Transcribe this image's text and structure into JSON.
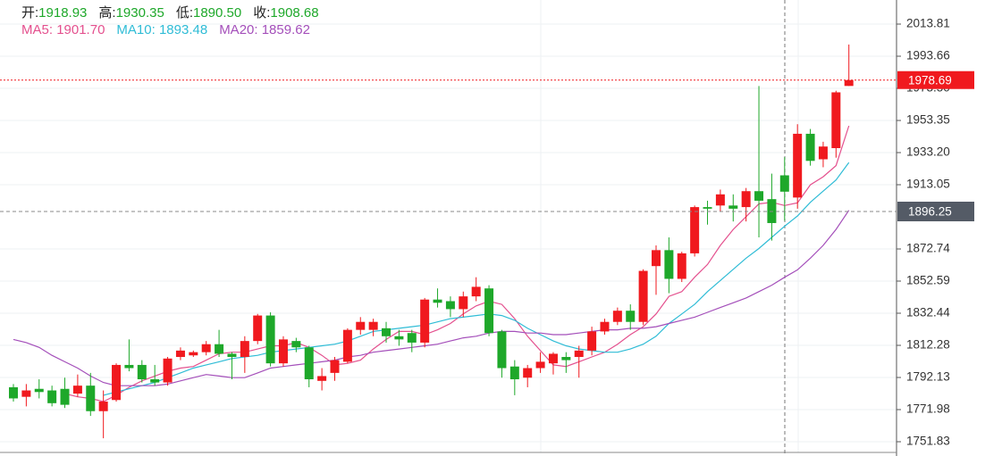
{
  "chart_data": {
    "type": "candlestick",
    "info": [
      {
        "label": "开:",
        "value": "1918.93"
      },
      {
        "label": "高:",
        "value": "1930.35"
      },
      {
        "label": "低:",
        "value": "1890.50"
      },
      {
        "label": "收:",
        "value": "1908.68"
      }
    ],
    "up_color": "#f0191e",
    "down_color": "#1ea82a",
    "ylim": [
      1742.87,
      2028.92
    ],
    "yticks": [
      2013.81,
      1993.66,
      {
        "value": 1973.5,
        "label": "1973.50"
      },
      1953.35,
      {
        "value": 1933.2,
        "label": "1933.20"
      },
      1913.05,
      1872.74,
      1852.59,
      1832.44,
      1812.28,
      1792.13,
      1771.98,
      1751.83
    ],
    "grid": true,
    "last_price": 1978.69,
    "crosshair_price": 1896.25,
    "candles": [
      [
        1786,
        1788,
        1777,
        1779
      ],
      [
        1780,
        1788,
        1774,
        1784
      ],
      [
        1785,
        1791,
        1779,
        1783
      ],
      [
        1784,
        1787,
        1774,
        1776
      ],
      [
        1785,
        1792,
        1773,
        1775
      ],
      [
        1782,
        1794,
        1780,
        1787
      ],
      [
        1787,
        1795,
        1768,
        1771
      ],
      [
        1771,
        1784,
        1754,
        1777
      ],
      [
        1778,
        1801,
        1777,
        1800
      ],
      [
        1800,
        1816,
        1796,
        1798
      ],
      [
        1800,
        1803,
        1789,
        1791
      ],
      [
        1791,
        1800,
        1787,
        1789
      ],
      [
        1789,
        1805,
        1787,
        1804
      ],
      [
        1805,
        1811,
        1803,
        1809
      ],
      [
        1806,
        1809,
        1805,
        1808
      ],
      [
        1808,
        1815,
        1806,
        1813
      ],
      [
        1813,
        1822,
        1805,
        1807
      ],
      [
        1807,
        1808,
        1791,
        1805
      ],
      [
        1805,
        1818,
        1795,
        1815
      ],
      [
        1815,
        1832,
        1813,
        1831
      ],
      [
        1831,
        1833,
        1799,
        1801
      ],
      [
        1801,
        1818,
        1799,
        1816
      ],
      [
        1815,
        1817,
        1808,
        1811
      ],
      [
        1811,
        1812,
        1786,
        1791
      ],
      [
        1790,
        1798,
        1784,
        1793
      ],
      [
        1795,
        1805,
        1790,
        1803
      ],
      [
        1802,
        1823,
        1801,
        1822
      ],
      [
        1822,
        1830,
        1819,
        1827
      ],
      [
        1822,
        1829,
        1818,
        1827
      ],
      [
        1823,
        1827,
        1814,
        1818
      ],
      [
        1818,
        1822,
        1812,
        1816
      ],
      [
        1820,
        1822,
        1808,
        1814
      ],
      [
        1814,
        1842,
        1811,
        1841
      ],
      [
        1841,
        1848,
        1836,
        1839
      ],
      [
        1840,
        1843,
        1830,
        1835
      ],
      [
        1835,
        1846,
        1830,
        1843
      ],
      [
        1843,
        1855,
        1840,
        1849
      ],
      [
        1848,
        1850,
        1818,
        1820
      ],
      [
        1821,
        1822,
        1792,
        1798
      ],
      [
        1799,
        1803,
        1781,
        1791
      ],
      [
        1792,
        1800,
        1786,
        1798
      ],
      [
        1798,
        1808,
        1795,
        1802
      ],
      [
        1801,
        1808,
        1794,
        1807
      ],
      [
        1805,
        1808,
        1795,
        1803
      ],
      [
        1805,
        1812,
        1792,
        1809
      ],
      [
        1809,
        1824,
        1806,
        1821
      ],
      [
        1821,
        1829,
        1819,
        1827
      ],
      [
        1827,
        1836,
        1825,
        1834
      ],
      [
        1834,
        1838,
        1822,
        1827
      ],
      [
        1827,
        1860,
        1825,
        1859
      ],
      [
        1862,
        1875,
        1844,
        1872
      ],
      [
        1872,
        1880,
        1845,
        1854
      ],
      [
        1854,
        1871,
        1852,
        1870
      ],
      [
        1870,
        1900,
        1868,
        1899
      ],
      [
        1899,
        1903,
        1888,
        1898
      ],
      [
        1900,
        1910,
        1896,
        1907
      ],
      [
        1900,
        1907,
        1890,
        1898
      ],
      [
        1899,
        1911,
        1890,
        1909
      ],
      [
        1909,
        1975,
        1880,
        1903
      ],
      [
        1904,
        1920,
        1878,
        1889
      ],
      [
        1918.93,
        1930.35,
        1890.5,
        1908.68
      ],
      [
        1905,
        1951,
        1898,
        1945
      ],
      [
        1945,
        1948,
        1925,
        1928
      ],
      [
        1929,
        1940,
        1924,
        1937
      ],
      [
        1936,
        1972,
        1930,
        1971
      ],
      [
        1975,
        2001,
        1975,
        1978.69
      ]
    ],
    "series": [
      {
        "name": "MA5",
        "color": "#e4508e",
        "current_label": "1901.70",
        "values": [
          null,
          null,
          null,
          null,
          1782,
          1780,
          1779,
          1777,
          1781,
          1786,
          1790,
          1793,
          1796,
          1798,
          1799,
          1803,
          1807,
          1808,
          1808,
          1810,
          1812,
          1812,
          1814,
          1811,
          1806,
          1800,
          1801,
          1803,
          1810,
          1816,
          1821,
          1821,
          1819,
          1822,
          1826,
          1832,
          1837,
          1840,
          1838,
          1829,
          1818,
          1809,
          1800,
          1799,
          1802,
          1805,
          1808,
          1813,
          1819,
          1824,
          1832,
          1843,
          1846,
          1855,
          1863,
          1875,
          1885,
          1893,
          1901,
          1902,
          1900,
          1901.7,
          1913,
          1918,
          1925,
          1950
        ]
      },
      {
        "name": "MA10",
        "color": "#2fbcd6",
        "current_label": "1893.48",
        "values": [
          null,
          null,
          null,
          null,
          null,
          null,
          null,
          1781,
          1783,
          1785,
          1787,
          1789,
          1792,
          1795,
          1798,
          1800,
          1802,
          1804,
          1805,
          1806,
          1808,
          1809,
          1810,
          1811,
          1812,
          1813,
          1815,
          1818,
          1821,
          1822,
          1823,
          1824,
          1825,
          1827,
          1829,
          1830,
          1831,
          1832,
          1831,
          1828,
          1823,
          1819,
          1815,
          1812,
          1810,
          1809,
          1808,
          1808,
          1810,
          1813,
          1818,
          1826,
          1832,
          1838,
          1846,
          1853,
          1860,
          1867,
          1873,
          1880,
          1887,
          1893.48,
          1902,
          1909,
          1916,
          1927
        ]
      },
      {
        "name": "MA20",
        "color": "#a44fba",
        "current_label": "1859.62",
        "values": [
          1816,
          1814,
          1811,
          1806,
          1802,
          1798,
          1793,
          1789,
          1787,
          1787,
          1787,
          1787,
          1788,
          1790,
          1792,
          1794,
          1793,
          1792,
          1792,
          1795,
          1798,
          1799,
          1800,
          1801,
          1802,
          1803,
          1805,
          1806,
          1808,
          1809,
          1810,
          1811,
          1812,
          1813,
          1815,
          1817,
          1818,
          1820,
          1821,
          1821,
          1820,
          1820,
          1819,
          1819,
          1820,
          1821,
          1822,
          1822,
          1823,
          1823,
          1824,
          1826,
          1828,
          1830,
          1833,
          1836,
          1839,
          1842,
          1846,
          1850,
          1855,
          1859.62,
          1867,
          1875,
          1885,
          1897
        ]
      }
    ]
  }
}
